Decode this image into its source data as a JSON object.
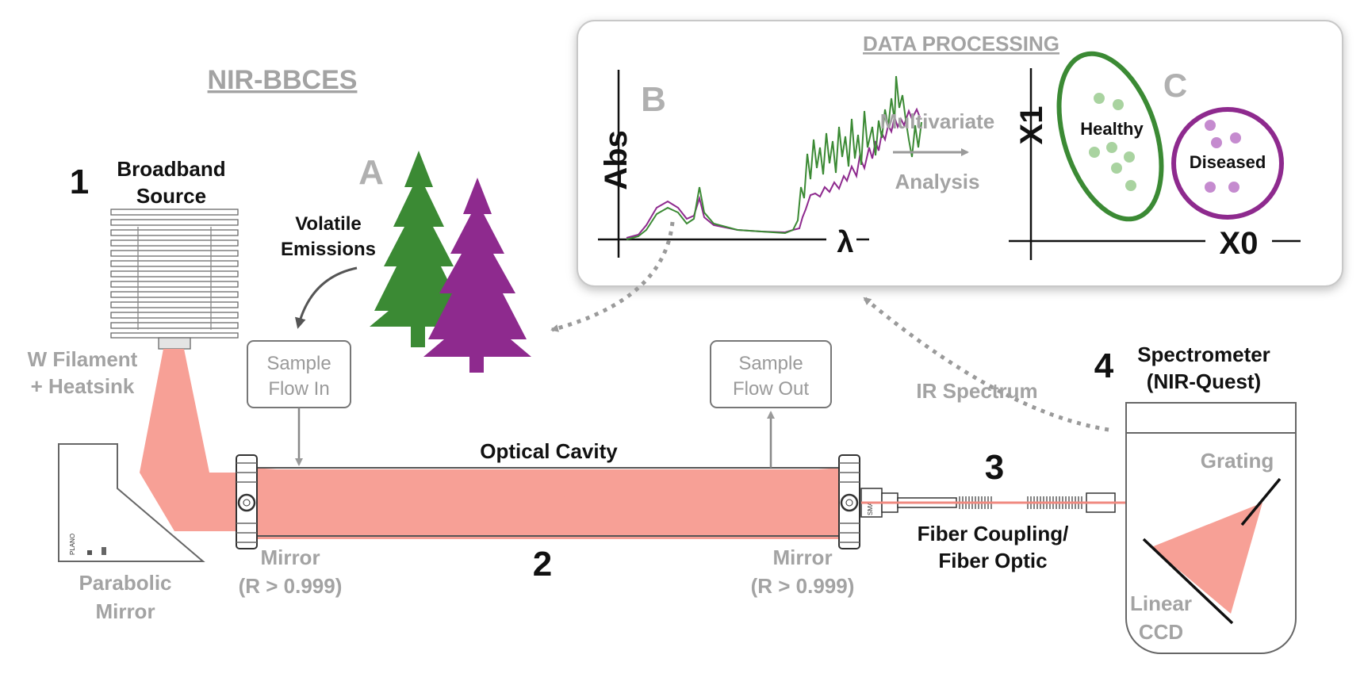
{
  "title": "NIR-BBCES",
  "processing": {
    "title": "DATA PROCESSING",
    "panel_b": {
      "letter": "B",
      "ylabel": "Abs",
      "xlabel": "λ"
    },
    "analysis": {
      "line1": "Multivariate",
      "line2": "Analysis"
    },
    "panel_c": {
      "letter": "C",
      "ylabel": "X1",
      "xlabel": "X0",
      "healthy": "Healthy",
      "diseased": "Diseased"
    }
  },
  "source": {
    "number": "1",
    "name_line1": "Broadband",
    "name_line2": "Source",
    "filament_line1": "W Filament",
    "filament_line2": "+ Heatsink"
  },
  "trees": {
    "letter": "A",
    "emissions_line1": "Volatile",
    "emissions_line2": "Emissions"
  },
  "sample_in": {
    "line1": "Sample",
    "line2": "Flow In"
  },
  "sample_out": {
    "line1": "Sample",
    "line2": "Flow Out"
  },
  "cavity": {
    "label": "Optical Cavity",
    "number": "2",
    "mirror_left_line1": "Mirror",
    "mirror_left_line2": "(R > 0.999)",
    "mirror_right_line1": "Mirror",
    "mirror_right_line2": "(R > 0.999)"
  },
  "parabolic": {
    "line1": "Parabolic",
    "line2": "Mirror"
  },
  "fiber": {
    "number": "3",
    "line1": "Fiber Coupling/",
    "line2": "Fiber Optic"
  },
  "spectrometer": {
    "number": "4",
    "line1": "Spectrometer",
    "line2": "(NIR-Quest)",
    "grating": "Grating",
    "ccd_line1": "Linear",
    "ccd_line2": "CCD"
  },
  "ir_spectrum": "IR Spectrum",
  "colors": {
    "beam": "#f7a096",
    "healthy": "#3b8a34",
    "diseased": "#8e2a8e",
    "grey_text": "#a3a3a3",
    "dots_green": "#a9d3a0",
    "dots_purple": "#c58bcf"
  }
}
